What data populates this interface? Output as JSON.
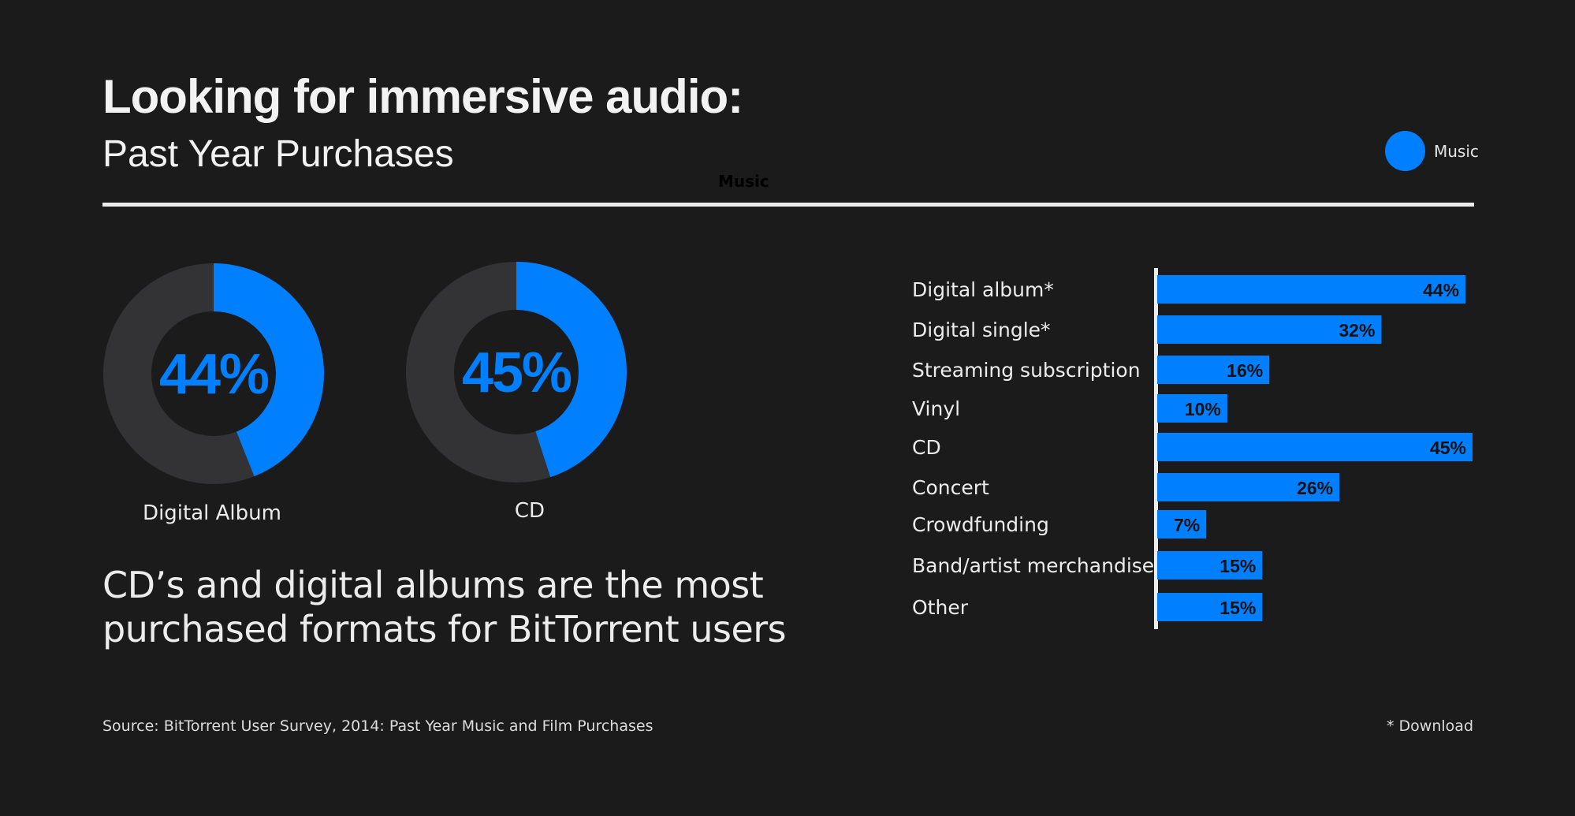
{
  "header": {
    "title": "Looking for immersive audio:",
    "subtitle": "Past Year Purchases",
    "small_label": "Music"
  },
  "legend": {
    "label": "Music",
    "color": "#0080ff"
  },
  "headline": "CD’s and digital albums are the most purchased formats for BitTorrent users",
  "footer": {
    "source": "Source: BitTorrent User Survey, 2014: Past Year Music and Film Purchases",
    "note": "* Download"
  },
  "colors": {
    "accent": "#0080ff",
    "track": "#333335",
    "background": "#1b1b1c",
    "bar_label": "#111111"
  },
  "chart_data": [
    {
      "type": "pie",
      "variant": "donut",
      "label": "Digital Album",
      "value": 44,
      "value_label": "44%"
    },
    {
      "type": "pie",
      "variant": "donut",
      "label": "CD",
      "value": 45,
      "value_label": "45%"
    },
    {
      "type": "bar",
      "orientation": "horizontal",
      "categories": [
        "Digital album*",
        "Digital single*",
        "Streaming subscription",
        "Vinyl",
        "CD",
        "Concert",
        "Crowdfunding",
        "Band/artist merchandise",
        "Other"
      ],
      "values": [
        44,
        32,
        16,
        10,
        45,
        26,
        7,
        15,
        15
      ],
      "value_labels": [
        "44%",
        "32%",
        "16%",
        "10%",
        "45%",
        "26%",
        "7%",
        "15%",
        "15%"
      ],
      "series": [
        {
          "name": "Music",
          "values": [
            44,
            32,
            16,
            10,
            45,
            26,
            7,
            15,
            15
          ]
        }
      ],
      "xlim": [
        0,
        45
      ],
      "grid": false,
      "legend_placement": "top-right"
    }
  ]
}
